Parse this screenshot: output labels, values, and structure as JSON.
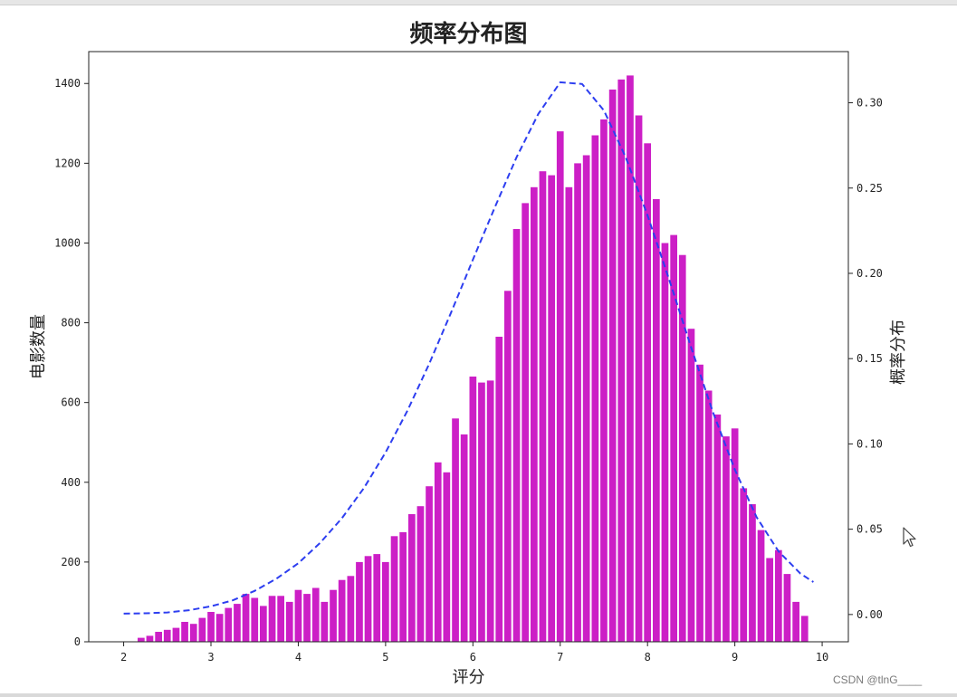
{
  "chart_data": {
    "type": "bar",
    "title": "频率分布图",
    "xlabel": "评分",
    "ylabel": "电影数量",
    "ylabel_right": "概率分布",
    "xlim": [
      1.6,
      10.3
    ],
    "ylim": [
      0,
      1480
    ],
    "ylim_right": [
      -0.016,
      0.33
    ],
    "x_ticks": [
      2,
      3,
      4,
      5,
      6,
      7,
      8,
      9,
      10
    ],
    "y_ticks": [
      0,
      200,
      400,
      600,
      800,
      1000,
      1200,
      1400
    ],
    "y_ticks_right": [
      0.0,
      0.05,
      0.1,
      0.15,
      0.2,
      0.25,
      0.3
    ],
    "y_tick_labels_right": [
      "0.00",
      "0.05",
      "0.10",
      "0.15",
      "0.20",
      "0.25",
      "0.30"
    ],
    "grid": false,
    "bar_color": "#cc1fc6",
    "bar_width": 0.08,
    "x": [
      2.2,
      2.3,
      2.4,
      2.5,
      2.6,
      2.7,
      2.8,
      2.9,
      3.0,
      3.1,
      3.2,
      3.3,
      3.4,
      3.5,
      3.6,
      3.7,
      3.8,
      3.9,
      4.0,
      4.1,
      4.2,
      4.3,
      4.4,
      4.5,
      4.6,
      4.7,
      4.8,
      4.9,
      5.0,
      5.1,
      5.2,
      5.3,
      5.4,
      5.5,
      5.6,
      5.7,
      5.8,
      5.9,
      6.0,
      6.1,
      6.2,
      6.3,
      6.4,
      6.5,
      6.6,
      6.7,
      6.8,
      6.9,
      7.0,
      7.1,
      7.2,
      7.3,
      7.4,
      7.5,
      7.6,
      7.7,
      7.8,
      7.9,
      8.0,
      8.1,
      8.2,
      8.3,
      8.4,
      8.5,
      8.6,
      8.7,
      8.8,
      8.9,
      9.0,
      9.1,
      9.2,
      9.3,
      9.4,
      9.5,
      9.6,
      9.7,
      9.8
    ],
    "values": [
      10,
      15,
      25,
      30,
      35,
      50,
      45,
      60,
      75,
      70,
      85,
      95,
      120,
      110,
      90,
      115,
      115,
      100,
      130,
      120,
      135,
      100,
      130,
      155,
      165,
      200,
      215,
      220,
      200,
      265,
      275,
      320,
      340,
      390,
      450,
      425,
      560,
      520,
      665,
      650,
      655,
      765,
      880,
      1035,
      1100,
      1140,
      1180,
      1170,
      1280,
      1140,
      1200,
      1220,
      1270,
      1310,
      1385,
      1410,
      1420,
      1320,
      1250,
      1110,
      1000,
      1020,
      970,
      785,
      695,
      630,
      570,
      515,
      535,
      385,
      345,
      280,
      210,
      230,
      170,
      100,
      65
    ],
    "curve": {
      "type": "line",
      "style": "dashed",
      "color": "#2d3ef0",
      "x": [
        2.0,
        2.25,
        2.5,
        2.75,
        3.0,
        3.25,
        3.5,
        3.75,
        4.0,
        4.25,
        4.5,
        4.75,
        5.0,
        5.25,
        5.5,
        5.75,
        6.0,
        6.25,
        6.5,
        6.75,
        7.0,
        7.25,
        7.5,
        7.75,
        8.0,
        8.25,
        8.5,
        8.75,
        9.0,
        9.25,
        9.5,
        9.75,
        9.9
      ],
      "y": [
        0.0005,
        0.0007,
        0.0012,
        0.0025,
        0.0048,
        0.0083,
        0.0138,
        0.021,
        0.03,
        0.042,
        0.0565,
        0.074,
        0.095,
        0.1195,
        0.147,
        0.177,
        0.208,
        0.2385,
        0.268,
        0.2935,
        0.312,
        0.311,
        0.2955,
        0.268,
        0.234,
        0.196,
        0.1565,
        0.1185,
        0.085,
        0.057,
        0.037,
        0.024,
        0.019
      ]
    }
  },
  "watermark": "CSDN @tlnG____"
}
